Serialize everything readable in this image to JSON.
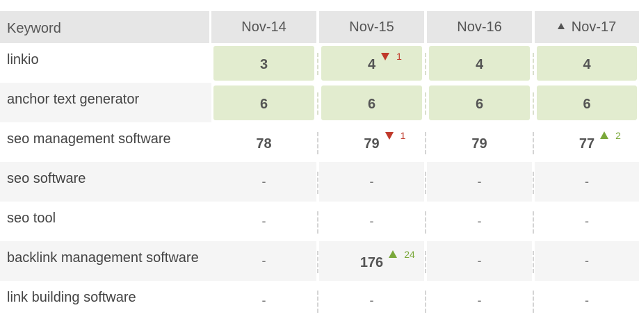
{
  "header": {
    "keyword_label": "Keyword",
    "dates": [
      "Nov-14",
      "Nov-15",
      "Nov-16",
      "Nov-17"
    ],
    "sorted_column_index": 3,
    "sort_icon": "triangle-up-icon"
  },
  "colors": {
    "header_bg": "#e6e6e6",
    "top_rank_bg": "#e2eccf",
    "rank_down": "#c0392b",
    "rank_up": "#7aa83a"
  },
  "rows": [
    {
      "keyword": "linkio",
      "cells": [
        {
          "value": "3",
          "highlight": true
        },
        {
          "value": "4",
          "highlight": true,
          "change": {
            "dir": "down",
            "amount": "1"
          }
        },
        {
          "value": "4",
          "highlight": true
        },
        {
          "value": "4",
          "highlight": true
        }
      ]
    },
    {
      "keyword": "anchor text generator",
      "cells": [
        {
          "value": "6",
          "highlight": true
        },
        {
          "value": "6",
          "highlight": true
        },
        {
          "value": "6",
          "highlight": true
        },
        {
          "value": "6",
          "highlight": true
        }
      ]
    },
    {
      "keyword": "seo management software",
      "cells": [
        {
          "value": "78"
        },
        {
          "value": "79",
          "change": {
            "dir": "down",
            "amount": "1"
          }
        },
        {
          "value": "79"
        },
        {
          "value": "77",
          "change": {
            "dir": "up",
            "amount": "2"
          }
        }
      ]
    },
    {
      "keyword": "seo software",
      "cells": [
        {
          "value": "-"
        },
        {
          "value": "-"
        },
        {
          "value": "-"
        },
        {
          "value": "-"
        }
      ]
    },
    {
      "keyword": "seo tool",
      "cells": [
        {
          "value": "-"
        },
        {
          "value": "-"
        },
        {
          "value": "-"
        },
        {
          "value": "-"
        }
      ]
    },
    {
      "keyword": "backlink management software",
      "cells": [
        {
          "value": "-"
        },
        {
          "value": "176",
          "change": {
            "dir": "up",
            "amount": "24"
          }
        },
        {
          "value": "-"
        },
        {
          "value": "-"
        }
      ]
    },
    {
      "keyword": "link building software",
      "cells": [
        {
          "value": "-"
        },
        {
          "value": "-"
        },
        {
          "value": "-"
        },
        {
          "value": "-"
        }
      ]
    }
  ]
}
